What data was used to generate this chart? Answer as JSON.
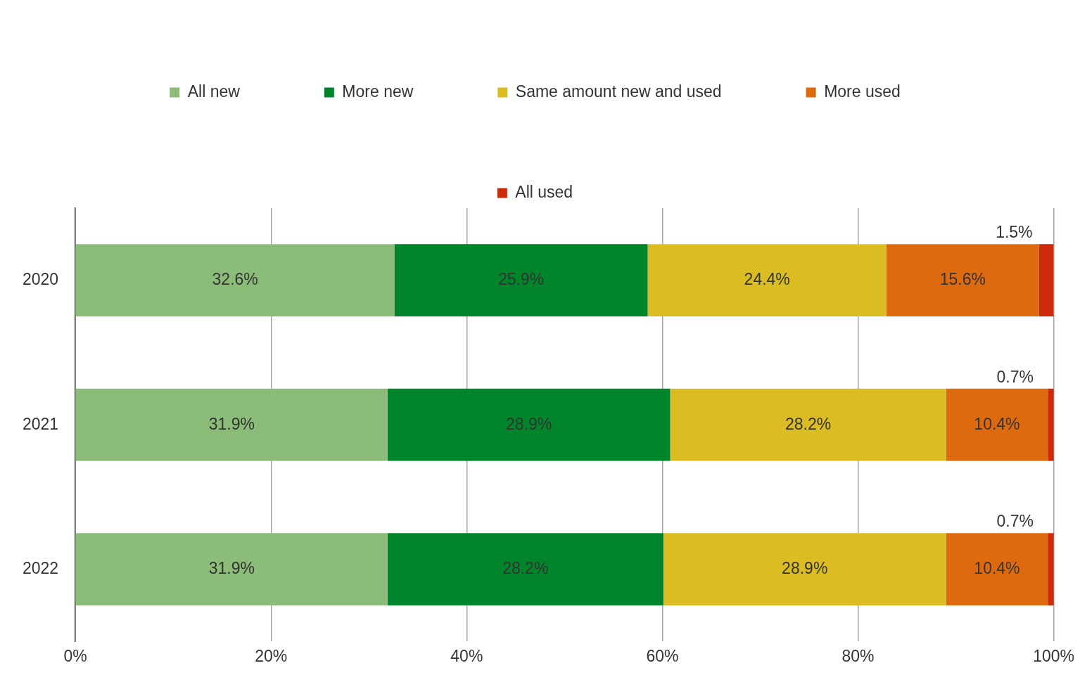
{
  "chart_data": {
    "type": "bar",
    "orientation": "horizontal",
    "stacked": true,
    "categories": [
      "2020",
      "2021",
      "2022"
    ],
    "series": [
      {
        "name": "All new",
        "color": "#8bbc78",
        "values": [
          32.6,
          31.9,
          31.9
        ],
        "value_labels": [
          "32.6%",
          "31.9%",
          "31.9%"
        ]
      },
      {
        "name": "More new",
        "color": "#00852b",
        "values": [
          25.9,
          28.9,
          28.2
        ],
        "value_labels": [
          "25.9%",
          "28.9%",
          "28.2%"
        ]
      },
      {
        "name": "Same amount new and used",
        "color": "#dbbc22",
        "values": [
          24.4,
          28.2,
          28.9
        ],
        "value_labels": [
          "24.4%",
          "28.2%",
          "28.9%"
        ]
      },
      {
        "name": "More used",
        "color": "#de6a10",
        "values": [
          15.6,
          10.4,
          10.4
        ],
        "value_labels": [
          "15.6%",
          "10.4%",
          "10.4%"
        ]
      },
      {
        "name": "All used",
        "color": "#cc2a0a",
        "values": [
          1.5,
          0.7,
          0.7
        ],
        "value_labels": [
          "1.5%",
          "0.7%",
          "0.7%"
        ]
      }
    ],
    "xlim": [
      0,
      100
    ],
    "xticks": [
      {
        "value": 0,
        "label": "0%"
      },
      {
        "value": 20,
        "label": "20%"
      },
      {
        "value": 40,
        "label": "40%"
      },
      {
        "value": 60,
        "label": "60%"
      },
      {
        "value": 80,
        "label": "80%"
      },
      {
        "value": 100,
        "label": "100%"
      }
    ],
    "grid": "x",
    "legend": "top"
  }
}
